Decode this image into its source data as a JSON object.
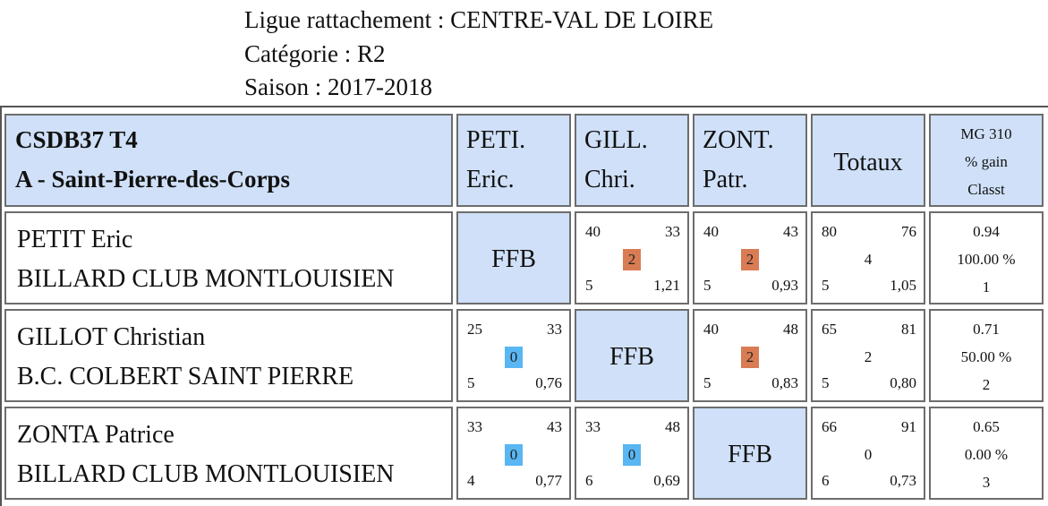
{
  "header": {
    "ligue": "Ligue rattachement : CENTRE-VAL DE LOIRE",
    "categorie": "Catégorie : R2",
    "saison": "Saison : 2017-2018"
  },
  "table": {
    "club_line1": "CSDB37 T4",
    "club_line2": "A - Saint-Pierre-des-Corps",
    "players_short": [
      {
        "line1": "PETI.",
        "line2": "Eric."
      },
      {
        "line1": "GILL.",
        "line2": "Chri."
      },
      {
        "line1": "ZONT.",
        "line2": "Patr."
      }
    ],
    "totaux_label": "Totaux",
    "stats_header": {
      "line1": "MG 310",
      "line2": "% gain",
      "line3": "Classt"
    },
    "rows": [
      {
        "name": "PETIT Eric",
        "club": "BILLARD CLUB MONTLOUISIEN",
        "cells": [
          {
            "ffb": "FFB"
          },
          {
            "tl": "40",
            "tr": "33",
            "mid": "2",
            "result": "win",
            "bl": "5",
            "br": "1,21"
          },
          {
            "tl": "40",
            "tr": "43",
            "mid": "2",
            "result": "win",
            "bl": "5",
            "br": "0,93"
          }
        ],
        "total": {
          "tl": "80",
          "tr": "76",
          "mid": "4",
          "bl": "5",
          "br": "1,05"
        },
        "stats": {
          "mg": "0.94",
          "pct": "100.00 %",
          "rank": "1"
        }
      },
      {
        "name": "GILLOT Christian",
        "club": "B.C. COLBERT SAINT PIERRE",
        "cells": [
          {
            "tl": "25",
            "tr": "33",
            "mid": "0",
            "result": "loss",
            "bl": "5",
            "br": "0,76"
          },
          {
            "ffb": "FFB"
          },
          {
            "tl": "40",
            "tr": "48",
            "mid": "2",
            "result": "win",
            "bl": "5",
            "br": "0,83"
          }
        ],
        "total": {
          "tl": "65",
          "tr": "81",
          "mid": "2",
          "bl": "5",
          "br": "0,80"
        },
        "stats": {
          "mg": "0.71",
          "pct": "50.00 %",
          "rank": "2"
        }
      },
      {
        "name": "ZONTA Patrice",
        "club": "BILLARD CLUB MONTLOUISIEN",
        "cells": [
          {
            "tl": "33",
            "tr": "43",
            "mid": "0",
            "result": "loss",
            "bl": "4",
            "br": "0,77"
          },
          {
            "tl": "33",
            "tr": "48",
            "mid": "0",
            "result": "loss",
            "bl": "6",
            "br": "0,69"
          },
          {
            "ffb": "FFB"
          }
        ],
        "total": {
          "tl": "66",
          "tr": "91",
          "mid": "0",
          "bl": "6",
          "br": "0,73"
        },
        "stats": {
          "mg": "0.65",
          "pct": "0.00 %",
          "rank": "3"
        }
      }
    ]
  },
  "colors": {
    "header_bg": "#cfe0f8",
    "win_badge": "#d97c54",
    "loss_badge": "#58b6f2",
    "border": "#6d6d6d"
  }
}
